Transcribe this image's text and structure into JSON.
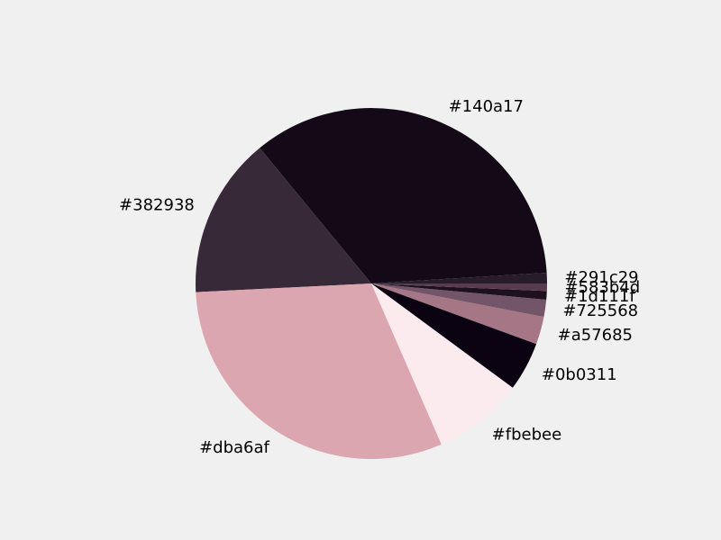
{
  "chart_data": {
    "type": "pie",
    "title": "",
    "background": "#f0f0f0",
    "start_angle_deg": 0,
    "direction": "counterclockwise",
    "legend": "none",
    "slices": [
      {
        "label": "#291c29",
        "color": "#291c29",
        "value": 1.0
      },
      {
        "label": "#140a17",
        "color": "#140a17",
        "value": 35.6
      },
      {
        "label": "#382938",
        "color": "#382938",
        "value": 15.1
      },
      {
        "label": "#dba6af",
        "color": "#dba6af",
        "value": 31.3
      },
      {
        "label": "#fbebee",
        "color": "#fbebee",
        "value": 8.5
      },
      {
        "label": "#0b0311",
        "color": "#0b0311",
        "value": 4.6
      },
      {
        "label": "#a57685",
        "color": "#a57685",
        "value": 2.6
      },
      {
        "label": "#725568",
        "color": "#725568",
        "value": 1.6
      },
      {
        "label": "#1d111f",
        "color": "#1d111f",
        "value": 0.8
      },
      {
        "label": "#583b4d",
        "color": "#583b4d",
        "value": 0.7
      }
    ]
  }
}
